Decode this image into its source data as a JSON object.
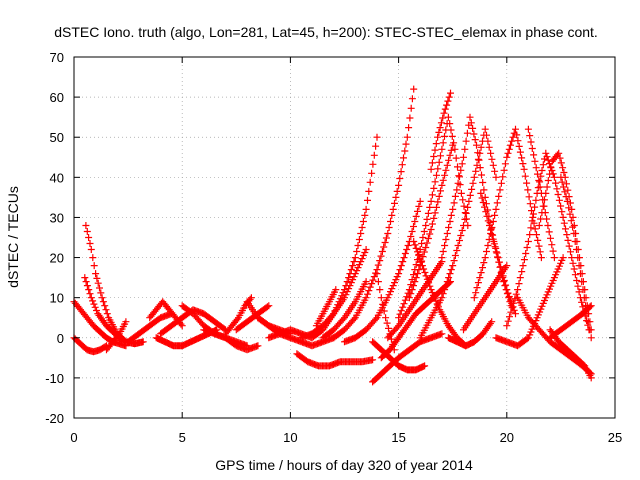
{
  "chart_data": {
    "type": "scatter",
    "title": "dSTEC Iono. truth (algo, Lon=281, Lat=45, h=200): STEC-STEC_elemax in phase cont.",
    "xlabel": "GPS time / hours of day 320 of year 2014",
    "ylabel": "dSTEC  / TECUs",
    "xlim": [
      0,
      25
    ],
    "ylim": [
      -20,
      70
    ],
    "xticks": [
      0,
      5,
      10,
      15,
      20,
      25
    ],
    "yticks": [
      -20,
      -10,
      0,
      10,
      20,
      30,
      40,
      50,
      60,
      70
    ],
    "grid": true,
    "legend": "none",
    "marker": "plus",
    "series_color": "#ff0000",
    "series": [
      {
        "x": [
          0.0,
          0.3,
          0.6,
          0.9,
          1.2,
          1.5,
          1.8,
          2.1,
          2.4
        ],
        "y": [
          9,
          7,
          5,
          3,
          1.5,
          0,
          -1,
          -1.5,
          -2
        ]
      },
      {
        "x": [
          0.0,
          0.3,
          0.6,
          0.9,
          1.2,
          1.5
        ],
        "y": [
          0,
          -1.5,
          -3,
          -3.5,
          -3,
          -2
        ]
      },
      {
        "x": [
          0.55,
          0.8,
          1.0,
          1.3,
          1.6,
          2.0,
          2.4,
          2.8,
          3.2
        ],
        "y": [
          28,
          22,
          16,
          10,
          5,
          1,
          -1,
          -1.5,
          -1
        ]
      },
      {
        "x": [
          0.5,
          0.8,
          1.1,
          1.5,
          1.9,
          2.2
        ],
        "y": [
          15,
          10,
          6,
          3,
          1,
          -0.5
        ]
      },
      {
        "x": [
          1.5,
          1.8,
          2.1,
          2.4
        ],
        "y": [
          -3,
          -1,
          1,
          4
        ]
      },
      {
        "x": [
          2.5,
          3.0,
          3.5,
          4.0,
          4.5
        ],
        "y": [
          -1,
          1,
          3,
          5,
          6
        ]
      },
      {
        "x": [
          3.5,
          3.8,
          4.1,
          4.4,
          4.7,
          5.0
        ],
        "y": [
          5,
          7,
          9,
          7,
          5,
          3
        ]
      },
      {
        "x": [
          4.0,
          4.5,
          5.0,
          5.5,
          6.0,
          6.5,
          7.0
        ],
        "y": [
          1,
          3,
          5,
          7,
          6,
          4,
          2
        ]
      },
      {
        "x": [
          3.8,
          4.2,
          4.6,
          5.0,
          5.4,
          5.8,
          6.2,
          6.6
        ],
        "y": [
          0,
          -1,
          -2,
          -2,
          -1,
          0,
          1,
          2
        ]
      },
      {
        "x": [
          5.0,
          5.5,
          6.0,
          6.5,
          7.0,
          7.5,
          8.0
        ],
        "y": [
          8,
          6,
          3,
          1,
          0,
          -1,
          -2
        ]
      },
      {
        "x": [
          6.0,
          6.5,
          7.0,
          7.5,
          8.0,
          8.5
        ],
        "y": [
          2,
          1,
          0,
          -2,
          -3,
          -2
        ]
      },
      {
        "x": [
          7.0,
          7.3,
          7.6,
          7.9,
          8.2
        ],
        "y": [
          1,
          3,
          5,
          8,
          10
        ]
      },
      {
        "x": [
          7.5,
          8.0,
          8.5,
          9.0
        ],
        "y": [
          2,
          4,
          6,
          8
        ]
      },
      {
        "x": [
          8.0,
          8.5,
          9.0,
          9.5,
          10.0
        ],
        "y": [
          9,
          5,
          3,
          1,
          0
        ]
      },
      {
        "x": [
          8.5,
          9.0,
          9.5,
          10.0
        ],
        "y": [
          5,
          3,
          2,
          1
        ]
      },
      {
        "x": [
          9.0,
          9.5,
          10.0,
          10.5,
          11.0
        ],
        "y": [
          0,
          1,
          2,
          1,
          0
        ]
      },
      {
        "x": [
          10.0,
          10.5,
          11.0,
          11.5,
          12.0
        ],
        "y": [
          0,
          -1,
          -2,
          -1,
          0
        ]
      },
      {
        "x": [
          10.3,
          10.8,
          11.3,
          11.8,
          12.3,
          12.8,
          13.3,
          13.8
        ],
        "y": [
          -4,
          -6,
          -7,
          -7,
          -6,
          -6,
          -6,
          -5.5
        ]
      },
      {
        "x": [
          10.5,
          11.0,
          11.5,
          12.0,
          12.5,
          13.0,
          13.5
        ],
        "y": [
          0,
          1,
          3,
          6,
          10,
          16,
          22
        ]
      },
      {
        "x": [
          11.0,
          11.5,
          12.0,
          12.5,
          13.0,
          13.5,
          14.0
        ],
        "y": [
          0,
          2,
          6,
          12,
          20,
          32,
          50
        ]
      },
      {
        "x": [
          11.5,
          12.0,
          12.5,
          13.0,
          13.5
        ],
        "y": [
          0,
          2,
          5,
          9,
          14
        ]
      },
      {
        "x": [
          11.2,
          11.5,
          11.8,
          12.1
        ],
        "y": [
          3,
          6,
          9,
          12
        ]
      },
      {
        "x": [
          12.0,
          12.5,
          13.0,
          13.5,
          14.0,
          14.5,
          15.0,
          15.4,
          15.7
        ],
        "y": [
          0,
          2,
          5,
          10,
          17,
          26,
          38,
          50,
          62
        ]
      },
      {
        "x": [
          12.5,
          13.0,
          13.5,
          14.0,
          14.5,
          15.0,
          15.5,
          16.0
        ],
        "y": [
          -1,
          0,
          2,
          5,
          10,
          16,
          24,
          34
        ]
      },
      {
        "x": [
          13.8,
          14.2,
          14.6,
          15.0,
          15.5,
          16.0,
          16.5,
          17.0
        ],
        "y": [
          -11,
          -9,
          -7,
          -5,
          -3,
          -1,
          0,
          1
        ]
      },
      {
        "x": [
          13.8,
          14.2,
          14.6,
          15.0,
          15.4,
          15.8,
          16.2
        ],
        "y": [
          -1,
          -3,
          -5,
          -7,
          -8,
          -8,
          -7
        ]
      },
      {
        "x": [
          14.0,
          14.2,
          14.4,
          14.6,
          14.8
        ],
        "y": [
          16,
          10,
          5,
          1,
          -3
        ]
      },
      {
        "x": [
          14.2,
          14.6,
          15.0,
          15.4,
          15.8,
          16.2,
          16.6,
          17.0,
          17.4
        ],
        "y": [
          -5,
          -3,
          0,
          3,
          6,
          8,
          10,
          12,
          14
        ]
      },
      {
        "x": [
          14.5,
          15.0,
          15.5,
          16.0,
          16.5,
          17.0
        ],
        "y": [
          0,
          3,
          7,
          11,
          15,
          19
        ]
      },
      {
        "x": [
          15.0,
          15.5,
          16.0,
          16.5,
          17.0,
          17.3,
          17.6,
          17.9,
          18.2
        ],
        "y": [
          5,
          12,
          22,
          34,
          47,
          55,
          47,
          36,
          28
        ]
      },
      {
        "x": [
          15.5,
          16.0,
          16.5,
          17.0,
          17.5
        ],
        "y": [
          10,
          18,
          27,
          38,
          48
        ]
      },
      {
        "x": [
          15.7,
          16.1,
          16.5,
          16.9,
          17.3,
          17.7,
          18.1
        ],
        "y": [
          24,
          18,
          12,
          7,
          3,
          0,
          -2
        ]
      },
      {
        "x": [
          16.0,
          16.5,
          17.0,
          17.5,
          18.0,
          18.5,
          19.0,
          19.5
        ],
        "y": [
          0,
          5,
          10,
          18,
          28,
          40,
          52,
          40
        ]
      },
      {
        "x": [
          16.5,
          16.8,
          17.1,
          17.4
        ],
        "y": [
          42,
          50,
          56,
          61
        ]
      },
      {
        "x": [
          17.0,
          17.5,
          18.0,
          18.3,
          18.6,
          19.0,
          19.4,
          19.8,
          20.2
        ],
        "y": [
          20,
          32,
          45,
          55,
          48,
          35,
          24,
          15,
          8
        ]
      },
      {
        "x": [
          17.3,
          17.7,
          18.1,
          18.5,
          18.9,
          19.3
        ],
        "y": [
          0,
          -1,
          -2,
          -1,
          1,
          4
        ]
      },
      {
        "x": [
          18.0,
          18.5,
          19.0,
          19.5,
          20.0
        ],
        "y": [
          2,
          6,
          10,
          14,
          18
        ]
      },
      {
        "x": [
          18.5,
          19.0,
          19.5,
          20.0,
          20.4,
          20.8,
          21.2,
          21.6
        ],
        "y": [
          10,
          20,
          32,
          45,
          52,
          42,
          30,
          20
        ]
      },
      {
        "x": [
          18.8,
          19.2,
          19.6,
          20.0,
          20.4
        ],
        "y": [
          36,
          28,
          20,
          12,
          6
        ]
      },
      {
        "x": [
          19.5,
          20.0,
          20.5,
          21.0,
          21.4,
          21.8,
          22.2,
          22.6
        ],
        "y": [
          0,
          -1,
          -2,
          0,
          5,
          10,
          15,
          20
        ]
      },
      {
        "x": [
          20.0,
          20.5,
          21.0,
          21.4,
          21.8,
          22.2,
          22.6,
          23.0,
          23.4,
          23.8
        ],
        "y": [
          3,
          12,
          24,
          36,
          46,
          40,
          30,
          20,
          10,
          2
        ]
      },
      {
        "x": [
          20.5,
          21.0,
          21.5,
          22.0,
          22.5,
          23.0,
          23.5,
          23.9
        ],
        "y": [
          10,
          5,
          2,
          -1,
          -3,
          -5,
          -7,
          -9
        ]
      },
      {
        "x": [
          21.0,
          21.3,
          21.6,
          21.9,
          22.2
        ],
        "y": [
          52,
          44,
          36,
          28,
          20
        ]
      },
      {
        "x": [
          21.5,
          21.8,
          22.1,
          22.4,
          22.7,
          23.0,
          23.3,
          23.6,
          23.9
        ],
        "y": [
          28,
          36,
          44,
          46,
          40,
          32,
          22,
          12,
          2
        ]
      },
      {
        "x": [
          22.5,
          22.8,
          23.1,
          23.4,
          23.7,
          23.9
        ],
        "y": [
          40,
          34,
          26,
          16,
          6,
          0
        ]
      },
      {
        "x": [
          22.0,
          22.5,
          23.0,
          23.5,
          23.9
        ],
        "y": [
          0,
          2,
          4,
          6,
          8
        ]
      },
      {
        "x": [
          22.0,
          22.4,
          22.8,
          23.2,
          23.6,
          23.9
        ],
        "y": [
          2,
          -1,
          -3,
          -5,
          -7,
          -10
        ]
      }
    ]
  }
}
